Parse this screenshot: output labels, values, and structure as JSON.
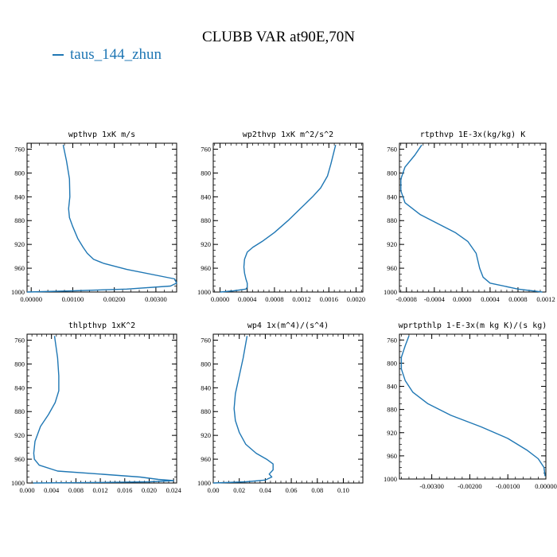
{
  "title": "CLUBB VAR at90E,70N",
  "legend": {
    "label": "taus_144_zhun",
    "color": "#1f77b4"
  },
  "chart_data": [
    {
      "type": "line",
      "title": "wpthvp  1xK m/s",
      "xlim": [
        -0.0001,
        0.0035
      ],
      "ylim": [
        1000,
        750
      ],
      "y_reversed": true,
      "xticks": [
        0,
        0.001,
        0.002,
        0.003
      ],
      "xtick_labels": [
        "0.00000",
        "0.00100",
        "0.00200",
        "0.00300"
      ],
      "yticks": [
        760,
        800,
        840,
        880,
        920,
        960,
        1000
      ],
      "series": [
        {
          "color": "#1f77b4",
          "x": [
            0.00077,
            0.00085,
            0.00092,
            0.00093,
            0.0009,
            0.00092,
            0.001,
            0.00112,
            0.00125,
            0.00135,
            0.0015,
            0.00175,
            0.0023,
            0.00345,
            0.0035,
            0.00335,
            0.0023,
            0.001,
            -0.0001
          ],
          "y": [
            753,
            780,
            810,
            840,
            860,
            875,
            890,
            910,
            925,
            935,
            945,
            952,
            962,
            978,
            985,
            990,
            995,
            998,
            1000
          ]
        }
      ]
    },
    {
      "type": "line",
      "title": "wp2thvp  1xK m^2/s^2",
      "xlim": [
        -0.0001,
        0.0021
      ],
      "ylim": [
        1000,
        750
      ],
      "y_reversed": true,
      "xticks": [
        0,
        0.0004,
        0.0008,
        0.0012,
        0.0016,
        0.002
      ],
      "xtick_labels": [
        "0.0000",
        "0.0004",
        "0.0008",
        "0.0012",
        "0.0016",
        "0.0020"
      ],
      "yticks": [
        760,
        800,
        840,
        880,
        920,
        960,
        1000
      ],
      "series": [
        {
          "color": "#1f77b4",
          "x": [
            0.0017,
            0.00163,
            0.00158,
            0.00148,
            0.00136,
            0.00118,
            0.001,
            0.0008,
            0.00062,
            0.00048,
            0.0004,
            0.00036,
            0.00035,
            0.00036,
            0.00038,
            0.0004,
            0.0004,
            0.00038,
            0.0002,
            0.0
          ],
          "y": [
            753,
            785,
            805,
            825,
            840,
            860,
            880,
            900,
            915,
            925,
            933,
            945,
            958,
            968,
            978,
            985,
            992,
            995,
            998,
            1000
          ]
        }
      ]
    },
    {
      "type": "line",
      "title": "rtpthvp  1E-3x(kg/kg) K",
      "xlim": [
        -0.0009,
        0.0012
      ],
      "ylim": [
        1000,
        750
      ],
      "y_reversed": true,
      "xticks": [
        -0.0008,
        -0.0004,
        0,
        0.0004,
        0.0008,
        0.0012
      ],
      "xtick_labels": [
        "-0.0008",
        "-0.0004",
        "0.0000",
        "0.0004",
        "0.0008",
        "0.0012"
      ],
      "yticks": [
        760,
        800,
        840,
        880,
        920,
        960,
        1000
      ],
      "series": [
        {
          "color": "#1f77b4",
          "x": [
            -0.00058,
            -0.00068,
            -0.00082,
            -0.00088,
            -0.00088,
            -0.00082,
            -0.0006,
            -0.00035,
            -0.0001,
            8e-05,
            0.0002,
            0.00025,
            0.0003,
            0.0004,
            0.0008,
            0.00115
          ],
          "y": [
            753,
            770,
            790,
            810,
            830,
            850,
            870,
            885,
            900,
            915,
            935,
            960,
            975,
            985,
            995,
            1000
          ]
        }
      ]
    },
    {
      "type": "line",
      "title": "thlpthvp  1xK^2",
      "xlim": [
        0,
        0.0245
      ],
      "ylim": [
        1000,
        750
      ],
      "y_reversed": true,
      "xticks": [
        0,
        0.004,
        0.008,
        0.012,
        0.016,
        0.02,
        0.024
      ],
      "xtick_labels": [
        "0.000",
        "0.004",
        "0.008",
        "0.012",
        "0.016",
        "0.020",
        "0.024"
      ],
      "yticks": [
        760,
        800,
        840,
        880,
        920,
        960,
        1000
      ],
      "series": [
        {
          "color": "#1f77b4",
          "x": [
            0.0045,
            0.005,
            0.0052,
            0.0052,
            0.0046,
            0.0035,
            0.0022,
            0.0013,
            0.0011,
            0.0012,
            0.002,
            0.005,
            0.012,
            0.0185,
            0.0215,
            0.024,
            0.02,
            0.012,
            0.001
          ],
          "y": [
            753,
            790,
            820,
            845,
            865,
            885,
            905,
            930,
            950,
            960,
            970,
            980,
            985,
            990,
            994,
            996,
            998,
            999,
            1000
          ]
        }
      ]
    },
    {
      "type": "line",
      "title": "wp4  1x(m^4)/(s^4)",
      "xlim": [
        0,
        0.115
      ],
      "ylim": [
        1000,
        750
      ],
      "y_reversed": true,
      "xticks": [
        0,
        0.02,
        0.04,
        0.06,
        0.08,
        0.1
      ],
      "xtick_labels": [
        "0.00",
        "0.02",
        "0.04",
        "0.06",
        "0.08",
        "0.10"
      ],
      "yticks": [
        760,
        800,
        840,
        880,
        920,
        960,
        1000
      ],
      "series": [
        {
          "color": "#1f77b4",
          "x": [
            0.026,
            0.023,
            0.02,
            0.017,
            0.016,
            0.017,
            0.02,
            0.025,
            0.033,
            0.041,
            0.046,
            0.046,
            0.043,
            0.045,
            0.04,
            0.025,
            0.0
          ],
          "y": [
            753,
            790,
            820,
            850,
            875,
            895,
            915,
            935,
            950,
            960,
            968,
            978,
            985,
            990,
            995,
            998,
            1000
          ]
        }
      ]
    },
    {
      "type": "line",
      "title": "wprtpthlp  1-E-3x(m kg K)/(s kg)",
      "xlim": [
        -0.00385,
        0.0
      ],
      "ylim": [
        1000,
        750
      ],
      "y_reversed": true,
      "xticks": [
        -0.003,
        -0.002,
        -0.001,
        0
      ],
      "xtick_labels": [
        "-0.00300",
        "-0.00200",
        "-0.00100",
        "0.00000"
      ],
      "yticks": [
        760,
        800,
        840,
        880,
        920,
        960,
        1000
      ],
      "series": [
        {
          "color": "#1f77b4",
          "x": [
            -0.0036,
            -0.0037,
            -0.0038,
            -0.0038,
            -0.0037,
            -0.0035,
            -0.0031,
            -0.0025,
            -0.0017,
            -0.001,
            -0.0005,
            -0.0002,
            -5e-05,
            -2e-05
          ],
          "y": [
            753,
            770,
            790,
            810,
            830,
            850,
            870,
            890,
            910,
            930,
            950,
            965,
            980,
            995
          ]
        }
      ]
    }
  ]
}
